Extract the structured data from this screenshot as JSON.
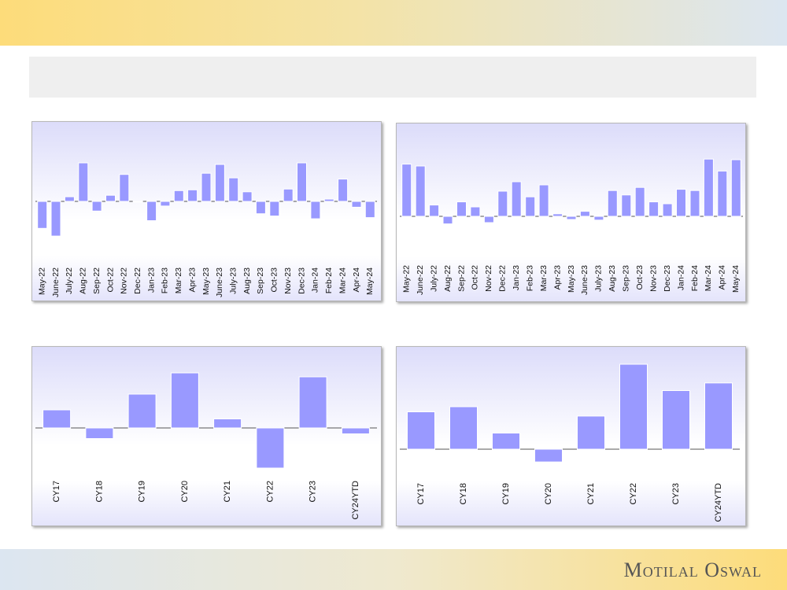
{
  "brand": "Motilal Oswal",
  "chart_data": [
    {
      "type": "bar",
      "categories": [
        "May-22",
        "June-22",
        "July-22",
        "Aug-22",
        "Sep-22",
        "Oct-22",
        "Nov-22",
        "Dec-22",
        "Jan-23",
        "Feb-23",
        "Mar-23",
        "Apr-23",
        "May-23",
        "June-23",
        "July-23",
        "Aug-23",
        "Sep-23",
        "Oct-23",
        "Nov-23",
        "Dec-23",
        "Jan-24",
        "Feb-24",
        "Mar-24",
        "Apr-24",
        "May-24"
      ],
      "values": [
        -7,
        -9,
        1.2,
        10,
        -2.5,
        1.6,
        7,
        0,
        -5,
        -1.2,
        2.8,
        3,
        7.3,
        9.6,
        6.1,
        2.5,
        -3.2,
        -3.8,
        3.2,
        10,
        -4.5,
        0.6,
        5.8,
        -1.5,
        -4.2
      ],
      "color": "#9999ff"
    },
    {
      "type": "bar",
      "categories": [
        "May-22",
        "June-22",
        "July-22",
        "Aug-22",
        "Sep-22",
        "Oct-22",
        "Nov-22",
        "Dec-22",
        "Jan-23",
        "Feb-23",
        "Mar-23",
        "Apr-23",
        "May-23",
        "June-23",
        "July-23",
        "Aug-23",
        "Sep-23",
        "Oct-23",
        "Nov-23",
        "Dec-23",
        "Jan-24",
        "Feb-24",
        "Mar-24",
        "Apr-24",
        "May-24"
      ],
      "values": [
        8.3,
        8,
        1.8,
        -1.2,
        2.3,
        1.5,
        -1,
        4,
        5.5,
        3.1,
        5,
        0.4,
        -0.5,
        0.8,
        -0.6,
        4.1,
        3.4,
        4.6,
        2.3,
        2,
        4.3,
        4.1,
        9.1,
        7.2,
        9
      ],
      "color": "#9999ff"
    },
    {
      "type": "bar",
      "categories": [
        "CY17",
        "CY18",
        "CY19",
        "CY20",
        "CY21",
        "CY22",
        "CY23",
        "CY24YTD"
      ],
      "values": [
        4.6,
        -2.7,
        8.6,
        14,
        2.3,
        -10.2,
        13,
        -1.5
      ],
      "color": "#9999ff"
    },
    {
      "type": "bar",
      "categories": [
        "CY17",
        "CY18",
        "CY19",
        "CY20",
        "CY21",
        "CY22",
        "CY23",
        "CY24YTD"
      ],
      "values": [
        4.4,
        5,
        1.9,
        -1.5,
        3.9,
        10,
        6.9,
        7.8
      ],
      "color": "#9999ff"
    }
  ]
}
